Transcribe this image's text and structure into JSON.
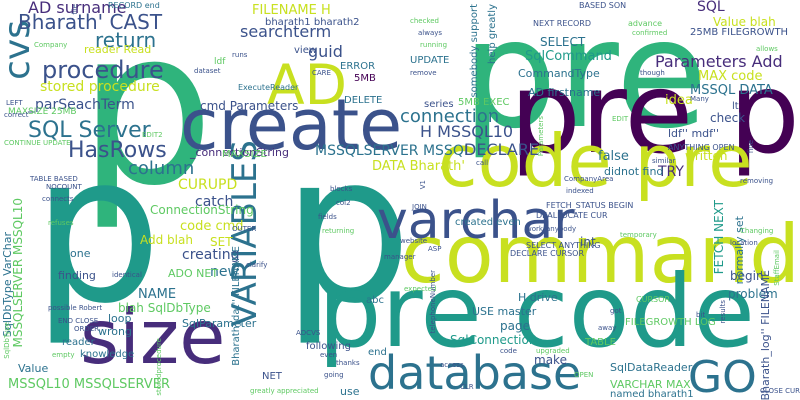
{
  "palette": {
    "green": "#2fb47c",
    "teal": "#1f9a8a",
    "blue": "#2c728e",
    "indigo": "#3b528b",
    "purple": "#472d7b",
    "dark": "#440154",
    "lime": "#a2da37",
    "yellow": "#c8e020",
    "lightgreen": "#5ec962"
  },
  "words": [
    {
      "text": "p",
      "c": "green"
    },
    {
      "text": "pre",
      "c": "green"
    },
    {
      "text": "pre p",
      "c": "dark"
    },
    {
      "text": "p",
      "c": "teal"
    },
    {
      "text": "p",
      "c": "teal"
    },
    {
      "text": "code pre",
      "c": "yellow"
    },
    {
      "text": "command",
      "c": "yellow"
    },
    {
      "text": "pre code",
      "c": "teal"
    },
    {
      "text": "size",
      "c": "purple"
    },
    {
      "text": "create",
      "c": "indigo"
    },
    {
      "text": "database",
      "c": "blue"
    },
    {
      "text": "varchar",
      "c": "indigo"
    },
    {
      "text": "VARIABLES",
      "c": "blue"
    },
    {
      "text": "AD",
      "c": "yellow"
    },
    {
      "text": "GO",
      "c": "blue"
    },
    {
      "text": "cvs",
      "c": "blue"
    },
    {
      "text": "procedure",
      "c": "indigo"
    },
    {
      "text": "Bharath' CAST",
      "c": "indigo"
    },
    {
      "text": "AD surname",
      "c": "purple"
    },
    {
      "text": "return",
      "c": "blue"
    },
    {
      "text": "SQL Server",
      "c": "blue"
    },
    {
      "text": "HasRows",
      "c": "indigo"
    },
    {
      "text": "column",
      "c": "blue"
    },
    {
      "text": "searchterm",
      "c": "indigo"
    },
    {
      "text": "guid",
      "c": "indigo"
    },
    {
      "text": "connection",
      "c": "blue"
    },
    {
      "text": "H MSSQL10",
      "c": "indigo"
    },
    {
      "text": "MSSQLSERVER MSSQL",
      "c": "blue"
    },
    {
      "text": "DECLARE",
      "c": "indigo"
    },
    {
      "text": "DATA Bharath'",
      "c": "yellow"
    },
    {
      "text": "FILENAME H",
      "c": "yellow"
    },
    {
      "text": "Parameters Add",
      "c": "purple"
    },
    {
      "text": "MAX code",
      "c": "yellow"
    },
    {
      "text": "MSSQL DATA",
      "c": "blue"
    },
    {
      "text": "SQL",
      "c": "purple"
    },
    {
      "text": "Value blah",
      "c": "yellow"
    },
    {
      "text": "idea",
      "c": "yellow"
    },
    {
      "text": "SqlCommand",
      "c": "teal"
    },
    {
      "text": "SELECT",
      "c": "blue"
    },
    {
      "text": "CommandType",
      "c": "blue"
    },
    {
      "text": "AD firstname",
      "c": "blue"
    },
    {
      "text": "stored procedure",
      "c": "yellow"
    },
    {
      "text": "_parSeachTerm",
      "c": "indigo"
    },
    {
      "text": "cmd Parameters",
      "c": "indigo"
    },
    {
      "text": "_connectionString",
      "c": "purple"
    },
    {
      "text": "false",
      "c": "blue"
    },
    {
      "text": "TRY",
      "c": "purple"
    },
    {
      "text": "CURUPD",
      "c": "yellow"
    },
    {
      "text": "catch",
      "c": "indigo"
    },
    {
      "text": "code cmd",
      "c": "yellow"
    },
    {
      "text": "ConnectionString",
      "c": "lightgreen"
    },
    {
      "text": "Add blah",
      "c": "yellow"
    },
    {
      "text": "SET",
      "c": "yellow"
    },
    {
      "text": "creating",
      "c": "indigo"
    },
    {
      "text": "new",
      "c": "blue"
    },
    {
      "text": "NAME",
      "c": "blue"
    },
    {
      "text": "ADO NET",
      "c": "lightgreen"
    },
    {
      "text": "blah SqlDbType",
      "c": "lightgreen"
    },
    {
      "text": "SqlParameter",
      "c": "blue"
    },
    {
      "text": "SqlDbType VarChar",
      "c": "blue"
    },
    {
      "text": "MSSQLSERVER MSSQL10",
      "c": "lightgreen"
    },
    {
      "text": "MSSQL10 MSSQLSERVER",
      "c": "lightgreen"
    },
    {
      "text": "SqlConnection",
      "c": "teal"
    },
    {
      "text": "SqlDataReader",
      "c": "blue"
    },
    {
      "text": "VARCHAR MAX",
      "c": "lightgreen"
    },
    {
      "text": "FETCH NEXT",
      "c": "teal"
    },
    {
      "text": "begin",
      "c": "indigo"
    },
    {
      "text": "problem",
      "c": "blue"
    },
    {
      "text": "normally set",
      "c": "blue"
    },
    {
      "text": "written",
      "c": "yellow"
    },
    {
      "text": "check",
      "c": "indigo"
    },
    {
      "text": "int",
      "c": "indigo"
    },
    {
      "text": "Bharath_log'' FILENAME",
      "c": "indigo"
    },
    {
      "text": "ldf'' mdf''",
      "c": "indigo"
    },
    {
      "text": "make",
      "c": "indigo"
    },
    {
      "text": "page",
      "c": "blue"
    },
    {
      "text": "USE master",
      "c": "blue"
    },
    {
      "text": "H drive",
      "c": "blue"
    },
    {
      "text": "Value",
      "c": "blue"
    },
    {
      "text": "wrong",
      "c": "blue"
    },
    {
      "text": "loop",
      "c": "blue"
    },
    {
      "text": "use",
      "c": "blue"
    },
    {
      "text": "end",
      "c": "blue"
    },
    {
      "text": "TABLE",
      "c": "lightgreen"
    },
    {
      "text": "FILEGROWTH LOG",
      "c": "lightgreen"
    },
    {
      "text": "25MB FILEGROWTH",
      "c": "indigo"
    },
    {
      "text": "one",
      "c": "blue"
    },
    {
      "text": "finding",
      "c": "indigo"
    },
    {
      "text": "reader",
      "c": "blue"
    },
    {
      "text": "knowledge",
      "c": "blue"
    },
    {
      "text": "Bharath_dat'' FILENAME",
      "c": "blue"
    },
    {
      "text": "NET",
      "c": "indigo"
    },
    {
      "text": "following",
      "c": "indigo"
    },
    {
      "text": "abc",
      "c": "blue"
    },
    {
      "text": "created even",
      "c": "blue"
    },
    {
      "text": "named bharath1",
      "c": "blue"
    },
    {
      "text": "didnot find",
      "c": "blue"
    },
    {
      "text": "reader Read",
      "c": "yellow"
    },
    {
      "text": "view",
      "c": "indigo"
    },
    {
      "text": "ERROR",
      "c": "blue"
    },
    {
      "text": "5MB",
      "c": "dark"
    },
    {
      "text": "DELETE",
      "c": "blue"
    },
    {
      "text": "UPDATE",
      "c": "blue"
    },
    {
      "text": "5MB EXEC",
      "c": "lightgreen"
    },
    {
      "text": "series",
      "c": "indigo"
    },
    {
      "text": "MAXSIZE",
      "c": "lightgreen"
    },
    {
      "text": "somebody support",
      "c": "blue"
    },
    {
      "text": "help greatly",
      "c": "blue"
    },
    {
      "text": "NEXT RECORD",
      "c": "indigo"
    },
    {
      "text": "BASED SON",
      "c": "indigo"
    },
    {
      "text": "advance",
      "c": "lightgreen"
    },
    {
      "text": "bharath1 bharath2",
      "c": "indigo"
    },
    {
      "text": "RECORD end",
      "c": "blue"
    },
    {
      "text": "MAXSIZE 25MB",
      "c": "lightgreen"
    },
    {
      "text": "ExecuteReader",
      "c": "blue"
    },
    {
      "text": "ldf",
      "c": "lightgreen"
    },
    {
      "text": "FETCH_STATUS BEGIN",
      "c": "indigo"
    },
    {
      "text": "DEALLOCATE CUR",
      "c": "indigo"
    },
    {
      "text": "SELECT ANYTHING",
      "c": "indigo"
    },
    {
      "text": "DECLARE CURSOR",
      "c": "indigo"
    },
    {
      "text": "lt",
      "c": "indigo"
    },
    {
      "text": "CURSOR",
      "c": "lightgreen"
    },
    {
      "text": "ANYTHING OPEN",
      "c": "indigo"
    },
    {
      "text": "TABLE BASED",
      "c": "indigo"
    },
    {
      "text": "CONTINUE UPDATE",
      "c": "lightgreen"
    },
    {
      "text": "END CLOSE",
      "c": "indigo"
    },
    {
      "text": "NOCOUNT",
      "c": "indigo"
    },
    {
      "text": "connects",
      "c": "indigo"
    },
    {
      "text": "refuses",
      "c": "lightgreen"
    },
    {
      "text": "identical",
      "c": "indigo"
    },
    {
      "text": "possible Robert",
      "c": "indigo"
    },
    {
      "text": "ORDER",
      "c": "indigo"
    },
    {
      "text": "empty",
      "c": "lightgreen"
    },
    {
      "text": "greatly appreciated",
      "c": "lightgreen"
    },
    {
      "text": "thanks",
      "c": "indigo"
    },
    {
      "text": "going",
      "c": "indigo"
    },
    {
      "text": "ADCVS",
      "c": "indigo"
    },
    {
      "text": "CARE",
      "c": "indigo"
    },
    {
      "text": "OUTER",
      "c": "indigo"
    },
    {
      "text": "blocks",
      "c": "indigo"
    },
    {
      "text": "col2",
      "c": "indigo"
    },
    {
      "text": "fields",
      "c": "indigo"
    },
    {
      "text": "returning",
      "c": "lightgreen"
    },
    {
      "text": "website",
      "c": "indigo"
    },
    {
      "text": "manager",
      "c": "indigo"
    },
    {
      "text": "ASP",
      "c": "indigo"
    },
    {
      "text": "JOIN",
      "c": "indigo"
    },
    {
      "text": "work",
      "c": "indigo"
    },
    {
      "text": "anybody",
      "c": "indigo"
    },
    {
      "text": "upgraded",
      "c": "lightgreen"
    },
    {
      "text": "access",
      "c": "indigo"
    },
    {
      "text": "code",
      "c": "indigo"
    },
    {
      "text": "away",
      "c": "indigo"
    },
    {
      "text": "got",
      "c": "indigo"
    },
    {
      "text": "indexed",
      "c": "indigo"
    },
    {
      "text": "similar",
      "c": "indigo"
    },
    {
      "text": "Many",
      "c": "indigo"
    },
    {
      "text": "CompanyArea",
      "c": "indigo"
    },
    {
      "text": "temporary",
      "c": "lightgreen"
    },
    {
      "text": "location",
      "c": "indigo"
    },
    {
      "text": "Changing",
      "c": "lightgreen"
    },
    {
      "text": "CLOSE CUR",
      "c": "indigo"
    },
    {
      "text": "removing",
      "c": "indigo"
    },
    {
      "text": "allows",
      "c": "lightgreen"
    },
    {
      "text": "confirmed",
      "c": "lightgreen"
    },
    {
      "text": "checked",
      "c": "lightgreen"
    },
    {
      "text": "always",
      "c": "indigo"
    },
    {
      "text": "running",
      "c": "lightgreen"
    },
    {
      "text": "dataset",
      "c": "indigo"
    },
    {
      "text": "remove",
      "c": "indigo"
    },
    {
      "text": "runs",
      "c": "indigo"
    },
    {
      "text": "Company",
      "c": "lightgreen"
    },
    {
      "text": "correct",
      "c": "indigo"
    },
    {
      "text": "LEFT",
      "c": "indigo"
    },
    {
      "text": "EDIT2",
      "c": "lightgreen"
    },
    {
      "text": "EDIT",
      "c": "lightgreen"
    },
    {
      "text": "clarify",
      "c": "indigo"
    },
    {
      "text": "even",
      "c": "indigo"
    },
    {
      "text": "expected",
      "c": "lightgreen"
    },
    {
      "text": "V1",
      "c": "indigo"
    },
    {
      "text": "telephoneNumber",
      "c": "indigo"
    },
    {
      "text": "Parameters",
      "c": "lightgreen"
    },
    {
      "text": "StaffEmail",
      "c": "lightgreen"
    },
    {
      "text": "results",
      "c": "indigo"
    },
    {
      "text": "SqlDbType",
      "c": "lightgreen"
    },
    {
      "text": "fine",
      "c": "indigo"
    },
    {
      "text": "call",
      "c": "indigo"
    },
    {
      "text": "bit",
      "c": "indigo"
    },
    {
      "text": "file",
      "c": "indigo"
    },
    {
      "text": "though",
      "c": "indigo"
    },
    {
      "text": "storedprocedure",
      "c": "lightgreen"
    },
    {
      "text": "OPEN",
      "c": "lightgreen"
    },
    {
      "text": "CLR",
      "c": "indigo"
    },
    {
      "text": "GRANT",
      "c": "lightgreen"
    }
  ]
}
